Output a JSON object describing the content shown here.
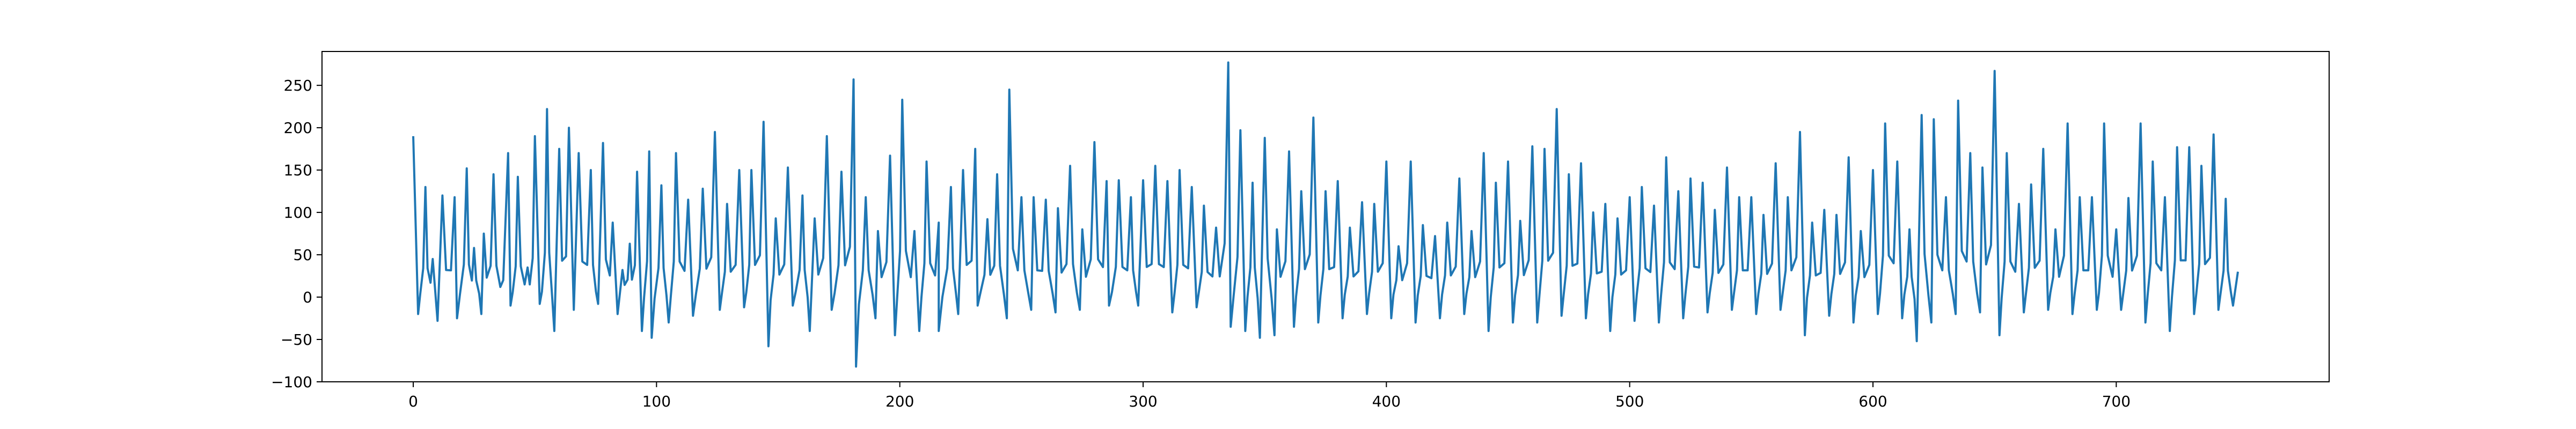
{
  "chart_data": {
    "type": "line",
    "title": "",
    "xlabel": "",
    "ylabel": "",
    "xlim": [
      -37.5,
      787.5
    ],
    "ylim": [
      -100,
      290
    ],
    "grid": false,
    "legend": "none",
    "line_color": "#1f77b4",
    "x_ticks": [
      0,
      100,
      200,
      300,
      400,
      500,
      600,
      700
    ],
    "y_ticks": [
      -100,
      -50,
      0,
      50,
      100,
      150,
      200,
      250
    ],
    "x_tick_labels": [
      "0",
      "100",
      "200",
      "300",
      "400",
      "500",
      "600",
      "700"
    ],
    "y_tick_labels": [
      "−100",
      "−50",
      "0",
      "50",
      "100",
      "150",
      "200",
      "250"
    ],
    "series": [
      {
        "x_start": 0,
        "x_step": 1,
        "peaks": [
          [
            0,
            190
          ],
          [
            5,
            130
          ],
          [
            8,
            45
          ],
          [
            12,
            120
          ],
          [
            17,
            118
          ],
          [
            22,
            152
          ],
          [
            25,
            58
          ],
          [
            29,
            75
          ],
          [
            33,
            145
          ],
          [
            37,
            20
          ],
          [
            39,
            170
          ],
          [
            43,
            142
          ],
          [
            47,
            35
          ],
          [
            50,
            190
          ],
          [
            55,
            222
          ],
          [
            60,
            175
          ],
          [
            64,
            200
          ],
          [
            68,
            170
          ],
          [
            73,
            150
          ],
          [
            78,
            182
          ],
          [
            82,
            88
          ],
          [
            86,
            32
          ],
          [
            89,
            63
          ],
          [
            92,
            148
          ],
          [
            97,
            172
          ],
          [
            102,
            132
          ],
          [
            108,
            170
          ],
          [
            113,
            115
          ],
          [
            119,
            128
          ],
          [
            124,
            195
          ],
          [
            129,
            110
          ],
          [
            134,
            150
          ],
          [
            139,
            150
          ],
          [
            144,
            207
          ],
          [
            149,
            93
          ],
          [
            154,
            153
          ],
          [
            160,
            120
          ],
          [
            165,
            93
          ],
          [
            170,
            190
          ],
          [
            176,
            148
          ],
          [
            181,
            257
          ],
          [
            186,
            118
          ],
          [
            191,
            78
          ],
          [
            196,
            167
          ],
          [
            201,
            233
          ],
          [
            206,
            78
          ],
          [
            211,
            160
          ],
          [
            216,
            88
          ],
          [
            221,
            130
          ],
          [
            226,
            150
          ],
          [
            231,
            175
          ],
          [
            236,
            92
          ],
          [
            240,
            145
          ],
          [
            245,
            245
          ],
          [
            250,
            118
          ],
          [
            255,
            118
          ],
          [
            260,
            115
          ],
          [
            265,
            105
          ],
          [
            270,
            155
          ],
          [
            275,
            80
          ],
          [
            280,
            183
          ],
          [
            285,
            137
          ],
          [
            290,
            138
          ],
          [
            295,
            118
          ],
          [
            300,
            138
          ],
          [
            305,
            155
          ],
          [
            310,
            137
          ],
          [
            315,
            150
          ],
          [
            320,
            130
          ],
          [
            325,
            108
          ],
          [
            330,
            82
          ],
          [
            335,
            277
          ],
          [
            340,
            197
          ],
          [
            345,
            135
          ],
          [
            350,
            188
          ],
          [
            355,
            80
          ],
          [
            360,
            172
          ],
          [
            365,
            125
          ],
          [
            370,
            212
          ],
          [
            375,
            125
          ],
          [
            380,
            137
          ],
          [
            385,
            82
          ],
          [
            390,
            112
          ],
          [
            395,
            110
          ],
          [
            400,
            160
          ],
          [
            405,
            60
          ],
          [
            410,
            160
          ],
          [
            415,
            85
          ],
          [
            420,
            72
          ],
          [
            425,
            88
          ],
          [
            430,
            140
          ],
          [
            435,
            78
          ],
          [
            440,
            170
          ],
          [
            445,
            135
          ],
          [
            450,
            160
          ],
          [
            455,
            90
          ],
          [
            460,
            178
          ],
          [
            465,
            175
          ],
          [
            470,
            222
          ],
          [
            475,
            145
          ],
          [
            480,
            158
          ],
          [
            485,
            100
          ],
          [
            490,
            110
          ],
          [
            495,
            93
          ],
          [
            500,
            118
          ],
          [
            505,
            130
          ],
          [
            510,
            108
          ],
          [
            515,
            165
          ],
          [
            520,
            125
          ],
          [
            525,
            140
          ],
          [
            530,
            135
          ],
          [
            535,
            103
          ],
          [
            540,
            153
          ],
          [
            545,
            118
          ],
          [
            550,
            118
          ],
          [
            555,
            97
          ],
          [
            560,
            158
          ],
          [
            565,
            118
          ],
          [
            570,
            195
          ],
          [
            575,
            88
          ],
          [
            580,
            103
          ],
          [
            585,
            97
          ],
          [
            590,
            165
          ],
          [
            595,
            78
          ],
          [
            600,
            150
          ],
          [
            605,
            205
          ],
          [
            610,
            160
          ],
          [
            615,
            80
          ],
          [
            620,
            215
          ],
          [
            625,
            210
          ],
          [
            630,
            118
          ],
          [
            635,
            232
          ],
          [
            640,
            170
          ],
          [
            645,
            153
          ],
          [
            650,
            267
          ],
          [
            655,
            170
          ],
          [
            660,
            110
          ],
          [
            665,
            133
          ],
          [
            670,
            175
          ],
          [
            675,
            80
          ],
          [
            680,
            205
          ],
          [
            685,
            118
          ],
          [
            690,
            118
          ],
          [
            695,
            205
          ],
          [
            700,
            80
          ],
          [
            705,
            117
          ],
          [
            710,
            205
          ],
          [
            715,
            160
          ],
          [
            720,
            118
          ],
          [
            725,
            177
          ],
          [
            730,
            177
          ],
          [
            735,
            155
          ],
          [
            740,
            192
          ],
          [
            745,
            116
          ],
          [
            750,
            30
          ]
        ],
        "troughs": [
          [
            2,
            -20
          ],
          [
            10,
            -28
          ],
          [
            18,
            -25
          ],
          [
            28,
            -20
          ],
          [
            40,
            -10
          ],
          [
            52,
            -8
          ],
          [
            58,
            -40
          ],
          [
            66,
            -15
          ],
          [
            76,
            -8
          ],
          [
            84,
            -20
          ],
          [
            94,
            -40
          ],
          [
            98,
            -48
          ],
          [
            105,
            -30
          ],
          [
            115,
            -22
          ],
          [
            126,
            -15
          ],
          [
            136,
            -12
          ],
          [
            146,
            -58
          ],
          [
            156,
            -10
          ],
          [
            163,
            -40
          ],
          [
            172,
            -15
          ],
          [
            182,
            -82
          ],
          [
            190,
            -25
          ],
          [
            198,
            -45
          ],
          [
            208,
            -40
          ],
          [
            216,
            -40
          ],
          [
            224,
            -20
          ],
          [
            232,
            -10
          ],
          [
            244,
            -25
          ],
          [
            254,
            -15
          ],
          [
            264,
            -18
          ],
          [
            274,
            -15
          ],
          [
            286,
            -10
          ],
          [
            298,
            -10
          ],
          [
            312,
            -18
          ],
          [
            322,
            -12
          ],
          [
            336,
            -35
          ],
          [
            342,
            -40
          ],
          [
            348,
            -48
          ],
          [
            354,
            -45
          ],
          [
            362,
            -35
          ],
          [
            372,
            -30
          ],
          [
            382,
            -25
          ],
          [
            392,
            -20
          ],
          [
            402,
            -25
          ],
          [
            412,
            -30
          ],
          [
            422,
            -25
          ],
          [
            432,
            -20
          ],
          [
            442,
            -40
          ],
          [
            452,
            -30
          ],
          [
            462,
            -30
          ],
          [
            472,
            -22
          ],
          [
            482,
            -25
          ],
          [
            492,
            -40
          ],
          [
            502,
            -28
          ],
          [
            512,
            -30
          ],
          [
            522,
            -25
          ],
          [
            532,
            -18
          ],
          [
            542,
            -15
          ],
          [
            552,
            -20
          ],
          [
            562,
            -15
          ],
          [
            572,
            -45
          ],
          [
            582,
            -22
          ],
          [
            592,
            -30
          ],
          [
            602,
            -20
          ],
          [
            612,
            -25
          ],
          [
            618,
            -52
          ],
          [
            624,
            -30
          ],
          [
            634,
            -20
          ],
          [
            644,
            -18
          ],
          [
            652,
            -45
          ],
          [
            662,
            -18
          ],
          [
            672,
            -15
          ],
          [
            682,
            -20
          ],
          [
            692,
            -15
          ],
          [
            702,
            -15
          ],
          [
            712,
            -30
          ],
          [
            722,
            -40
          ],
          [
            732,
            -20
          ],
          [
            742,
            -15
          ],
          [
            748,
            -10
          ]
        ]
      }
    ]
  }
}
